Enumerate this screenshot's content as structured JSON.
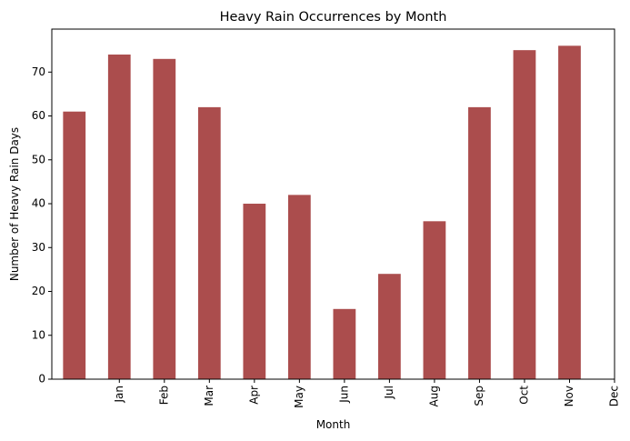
{
  "chart_data": {
    "type": "bar",
    "title": "Heavy Rain Occurrences by Month",
    "xlabel": "Month",
    "ylabel": "Number of Heavy Rain Days",
    "values": [
      61,
      74,
      73,
      62,
      40,
      42,
      16,
      24,
      36,
      62,
      75,
      76
    ],
    "tick_labels": [
      "Jan",
      "Feb",
      "Mar",
      "Apr",
      "May",
      "Jun",
      "Jul",
      "Aug",
      "Sep",
      "Oct",
      "Nov",
      "Dec"
    ],
    "yticks": [
      0,
      10,
      20,
      30,
      40,
      50,
      60,
      70
    ],
    "ylim": [
      0,
      79.8
    ],
    "bar_color": "#ab4d4d",
    "grid": false,
    "legend": "none"
  }
}
